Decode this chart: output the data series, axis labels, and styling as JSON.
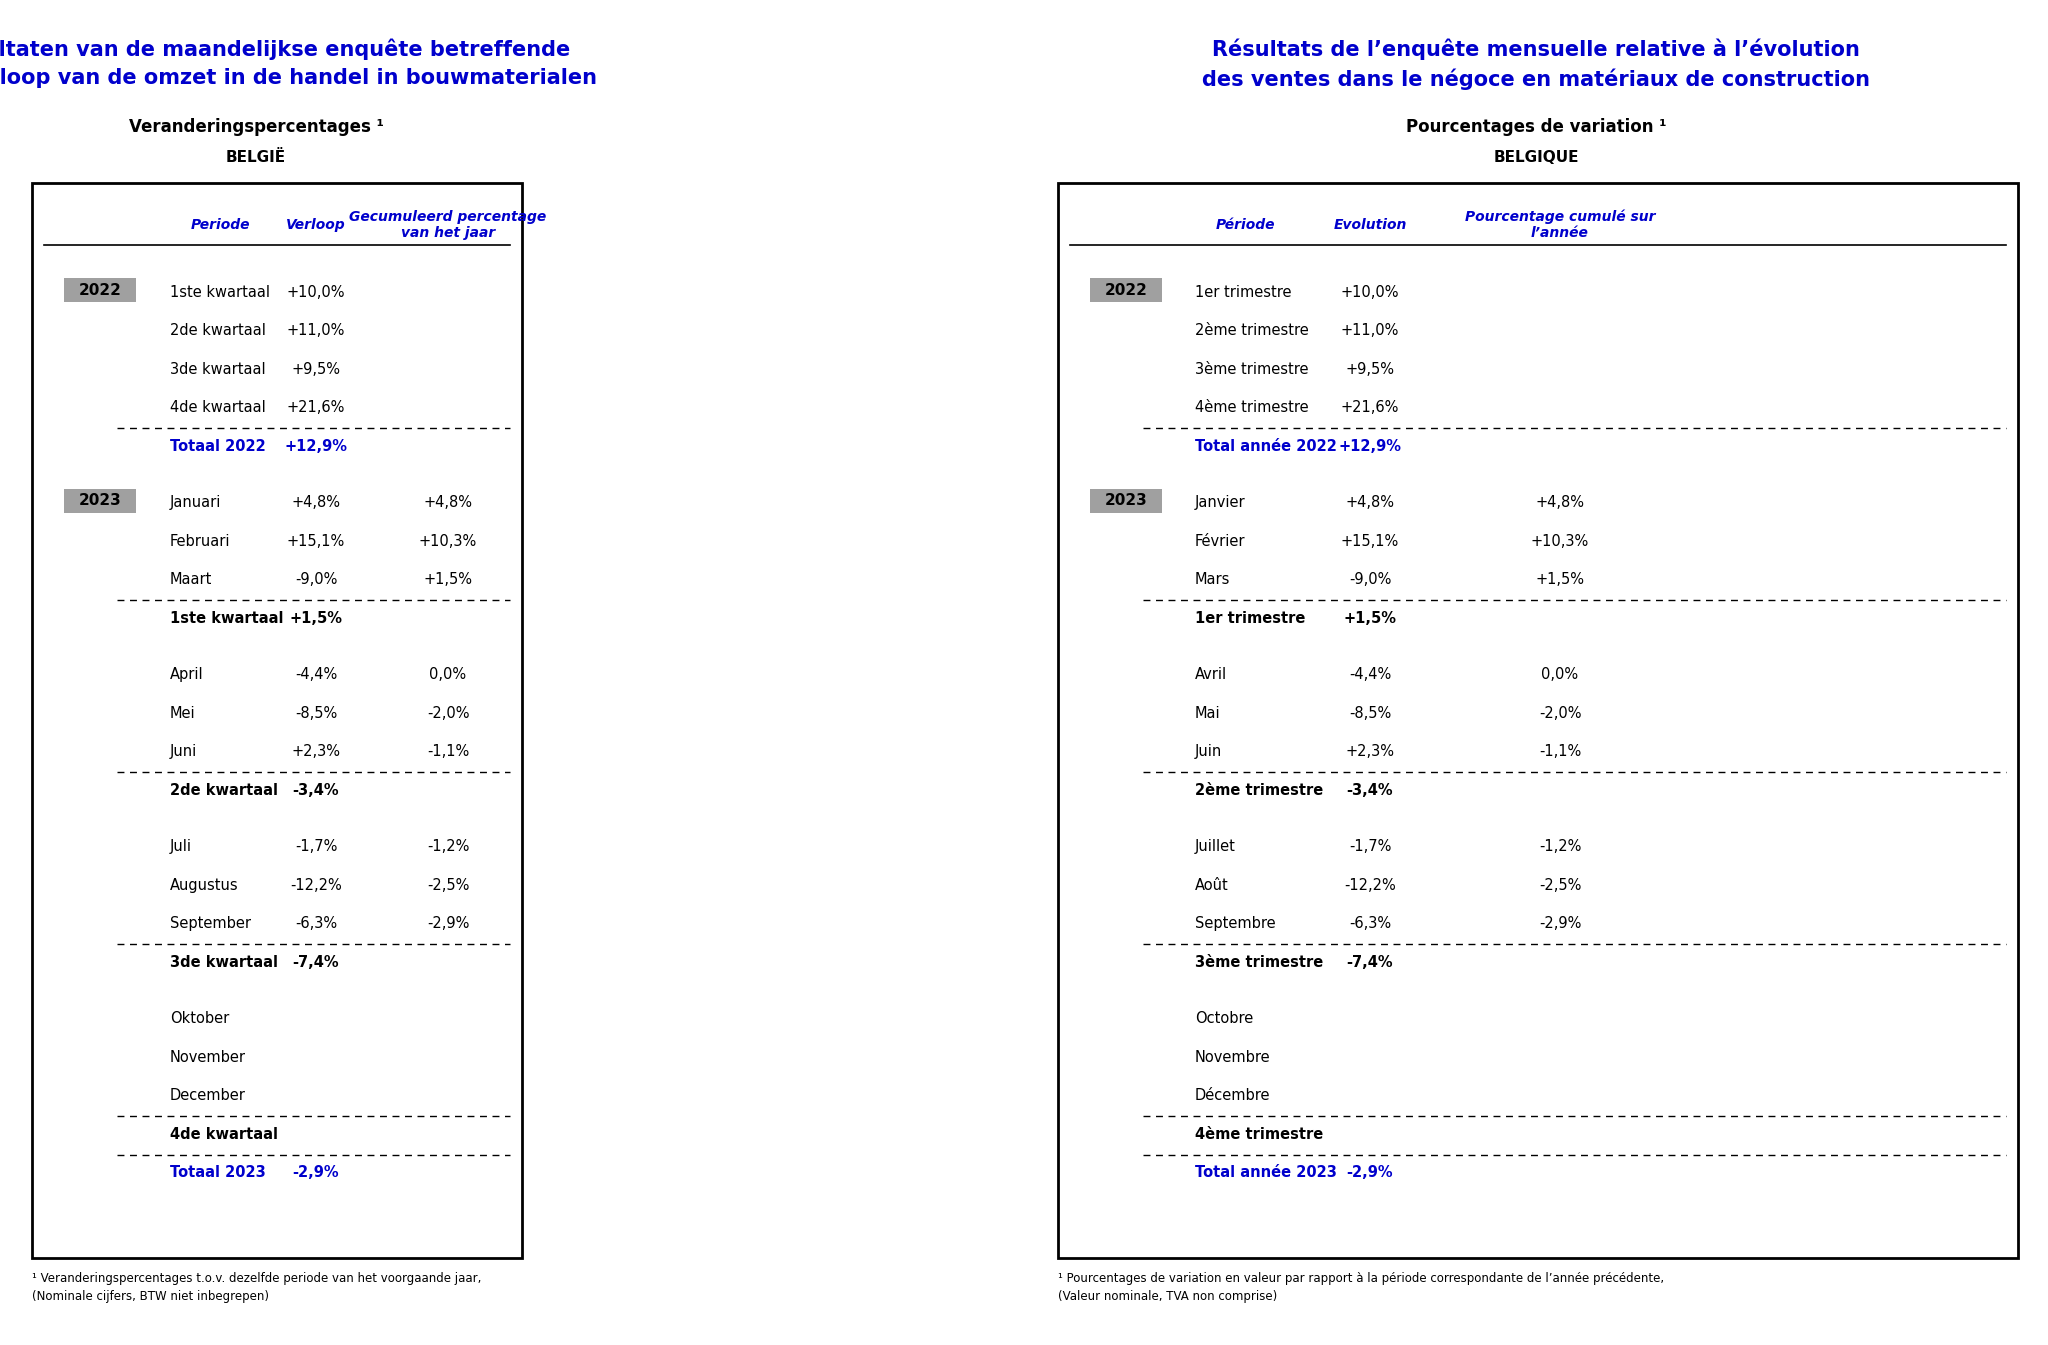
{
  "title_nl_line1": "Resultaten van de maandelijkse enquête betreffende",
  "title_nl_line2": "het verloop van de omzet in de handel in bouwmaterialen",
  "title_fr_line1": "Résultats de l’enquête mensuelle relative à l’évolution",
  "title_fr_line2": "des ventes dans le négoce en matériaux de construction",
  "subtitle_nl": "Veranderingspercentages ¹",
  "subtitle_fr": "Pourcentages de variation ¹",
  "country_nl": "BELGIË",
  "country_fr": "BELGIQUE",
  "col_headers_nl": [
    "Periode",
    "Verloop",
    "Gecumuleerd percentage\nvan het jaar"
  ],
  "col_headers_fr": [
    "Période",
    "Evolution",
    "Pourcentage cumulé sur\nl’année"
  ],
  "rows_nl": [
    {
      "year": "2022",
      "period": "1ste kwartaal",
      "verloop": "+10,0%",
      "cumul": "",
      "style": "normal",
      "dashed_after": false,
      "gap_before": false
    },
    {
      "year": "",
      "period": "2de kwartaal",
      "verloop": "+11,0%",
      "cumul": "",
      "style": "normal",
      "dashed_after": false,
      "gap_before": false
    },
    {
      "year": "",
      "period": "3de kwartaal",
      "verloop": "+9,5%",
      "cumul": "",
      "style": "normal",
      "dashed_after": false,
      "gap_before": false
    },
    {
      "year": "",
      "period": "4de kwartaal",
      "verloop": "+21,6%",
      "cumul": "",
      "style": "normal",
      "dashed_after": true,
      "gap_before": false
    },
    {
      "year": "",
      "period": "Totaal 2022",
      "verloop": "+12,9%",
      "cumul": "",
      "style": "total",
      "dashed_after": false,
      "gap_before": false
    },
    {
      "year": "2023",
      "period": "Januari",
      "verloop": "+4,8%",
      "cumul": "+4,8%",
      "style": "normal",
      "dashed_after": false,
      "gap_before": true
    },
    {
      "year": "",
      "period": "Februari",
      "verloop": "+15,1%",
      "cumul": "+10,3%",
      "style": "normal",
      "dashed_after": false,
      "gap_before": false
    },
    {
      "year": "",
      "period": "Maart",
      "verloop": "-9,0%",
      "cumul": "+1,5%",
      "style": "normal",
      "dashed_after": true,
      "gap_before": false
    },
    {
      "year": "",
      "period": "1ste kwartaal",
      "verloop": "+1,5%",
      "cumul": "",
      "style": "quarter",
      "dashed_after": false,
      "gap_before": false
    },
    {
      "year": "",
      "period": "April",
      "verloop": "-4,4%",
      "cumul": "0,0%",
      "style": "normal",
      "dashed_after": false,
      "gap_before": true
    },
    {
      "year": "",
      "period": "Mei",
      "verloop": "-8,5%",
      "cumul": "-2,0%",
      "style": "normal",
      "dashed_after": false,
      "gap_before": false
    },
    {
      "year": "",
      "period": "Juni",
      "verloop": "+2,3%",
      "cumul": "-1,1%",
      "style": "normal",
      "dashed_after": true,
      "gap_before": false
    },
    {
      "year": "",
      "period": "2de kwartaal",
      "verloop": "-3,4%",
      "cumul": "",
      "style": "quarter",
      "dashed_after": false,
      "gap_before": false
    },
    {
      "year": "",
      "period": "Juli",
      "verloop": "-1,7%",
      "cumul": "-1,2%",
      "style": "normal",
      "dashed_after": false,
      "gap_before": true
    },
    {
      "year": "",
      "period": "Augustus",
      "verloop": "-12,2%",
      "cumul": "-2,5%",
      "style": "normal",
      "dashed_after": false,
      "gap_before": false
    },
    {
      "year": "",
      "period": "September",
      "verloop": "-6,3%",
      "cumul": "-2,9%",
      "style": "normal",
      "dashed_after": true,
      "gap_before": false
    },
    {
      "year": "",
      "period": "3de kwartaal",
      "verloop": "-7,4%",
      "cumul": "",
      "style": "quarter",
      "dashed_after": false,
      "gap_before": false
    },
    {
      "year": "",
      "period": "Oktober",
      "verloop": "",
      "cumul": "",
      "style": "normal",
      "dashed_after": false,
      "gap_before": true
    },
    {
      "year": "",
      "period": "November",
      "verloop": "",
      "cumul": "",
      "style": "normal",
      "dashed_after": false,
      "gap_before": false
    },
    {
      "year": "",
      "period": "December",
      "verloop": "",
      "cumul": "",
      "style": "normal",
      "dashed_after": true,
      "gap_before": false
    },
    {
      "year": "",
      "period": "4de kwartaal",
      "verloop": "",
      "cumul": "",
      "style": "quarter",
      "dashed_after": true,
      "gap_before": false
    },
    {
      "year": "",
      "period": "Totaal 2023",
      "verloop": "-2,9%",
      "cumul": "",
      "style": "total",
      "dashed_after": false,
      "gap_before": false
    }
  ],
  "rows_fr": [
    {
      "year": "2022",
      "period": "1er trimestre",
      "verloop": "+10,0%",
      "cumul": "",
      "style": "normal",
      "dashed_after": false,
      "gap_before": false
    },
    {
      "year": "",
      "period": "2ème trimestre",
      "verloop": "+11,0%",
      "cumul": "",
      "style": "normal",
      "dashed_after": false,
      "gap_before": false
    },
    {
      "year": "",
      "period": "3ème trimestre",
      "verloop": "+9,5%",
      "cumul": "",
      "style": "normal",
      "dashed_after": false,
      "gap_before": false
    },
    {
      "year": "",
      "period": "4ème trimestre",
      "verloop": "+21,6%",
      "cumul": "",
      "style": "normal",
      "dashed_after": true,
      "gap_before": false
    },
    {
      "year": "",
      "period": "Total année 2022",
      "verloop": "+12,9%",
      "cumul": "",
      "style": "total",
      "dashed_after": false,
      "gap_before": false
    },
    {
      "year": "2023",
      "period": "Janvier",
      "verloop": "+4,8%",
      "cumul": "+4,8%",
      "style": "normal",
      "dashed_after": false,
      "gap_before": true
    },
    {
      "year": "",
      "period": "Février",
      "verloop": "+15,1%",
      "cumul": "+10,3%",
      "style": "normal",
      "dashed_after": false,
      "gap_before": false
    },
    {
      "year": "",
      "period": "Mars",
      "verloop": "-9,0%",
      "cumul": "+1,5%",
      "style": "normal",
      "dashed_after": true,
      "gap_before": false
    },
    {
      "year": "",
      "period": "1er trimestre",
      "verloop": "+1,5%",
      "cumul": "",
      "style": "quarter",
      "dashed_after": false,
      "gap_before": false
    },
    {
      "year": "",
      "period": "Avril",
      "verloop": "-4,4%",
      "cumul": "0,0%",
      "style": "normal",
      "dashed_after": false,
      "gap_before": true
    },
    {
      "year": "",
      "period": "Mai",
      "verloop": "-8,5%",
      "cumul": "-2,0%",
      "style": "normal",
      "dashed_after": false,
      "gap_before": false
    },
    {
      "year": "",
      "period": "Juin",
      "verloop": "+2,3%",
      "cumul": "-1,1%",
      "style": "normal",
      "dashed_after": true,
      "gap_before": false
    },
    {
      "year": "",
      "period": "2ème trimestre",
      "verloop": "-3,4%",
      "cumul": "",
      "style": "quarter",
      "dashed_after": false,
      "gap_before": false
    },
    {
      "year": "",
      "period": "Juillet",
      "verloop": "-1,7%",
      "cumul": "-1,2%",
      "style": "normal",
      "dashed_after": false,
      "gap_before": true
    },
    {
      "year": "",
      "period": "Août",
      "verloop": "-12,2%",
      "cumul": "-2,5%",
      "style": "normal",
      "dashed_after": false,
      "gap_before": false
    },
    {
      "year": "",
      "period": "Septembre",
      "verloop": "-6,3%",
      "cumul": "-2,9%",
      "style": "normal",
      "dashed_after": true,
      "gap_before": false
    },
    {
      "year": "",
      "period": "3ème trimestre",
      "verloop": "-7,4%",
      "cumul": "",
      "style": "quarter",
      "dashed_after": false,
      "gap_before": false
    },
    {
      "year": "",
      "period": "Octobre",
      "verloop": "",
      "cumul": "",
      "style": "normal",
      "dashed_after": false,
      "gap_before": true
    },
    {
      "year": "",
      "period": "Novembre",
      "verloop": "",
      "cumul": "",
      "style": "normal",
      "dashed_after": false,
      "gap_before": false
    },
    {
      "year": "",
      "period": "Décembre",
      "verloop": "",
      "cumul": "",
      "style": "normal",
      "dashed_after": true,
      "gap_before": false
    },
    {
      "year": "",
      "period": "4ème trimestre",
      "verloop": "",
      "cumul": "",
      "style": "quarter",
      "dashed_after": true,
      "gap_before": false
    },
    {
      "year": "",
      "period": "Total année 2023",
      "verloop": "-2,9%",
      "cumul": "",
      "style": "total",
      "dashed_after": false,
      "gap_before": false
    }
  ],
  "footnote_nl_line1": "¹ Veranderingspercentages t.o.v. dezelfde periode van het voorgaande jaar,",
  "footnote_nl_line2": "(Nominale cijfers, BTW niet inbegrepen)",
  "footnote_fr_line1": "¹ Pourcentages de variation en valeur par rapport à la période correspondante de l’année précédente,",
  "footnote_fr_line2": "(Valeur nominale, TVA non comprise)",
  "title_color": "#0000CC",
  "total_color": "#0000CC",
  "year_bg_color": "#A0A0A0",
  "header_italic_color": "#0000CC"
}
